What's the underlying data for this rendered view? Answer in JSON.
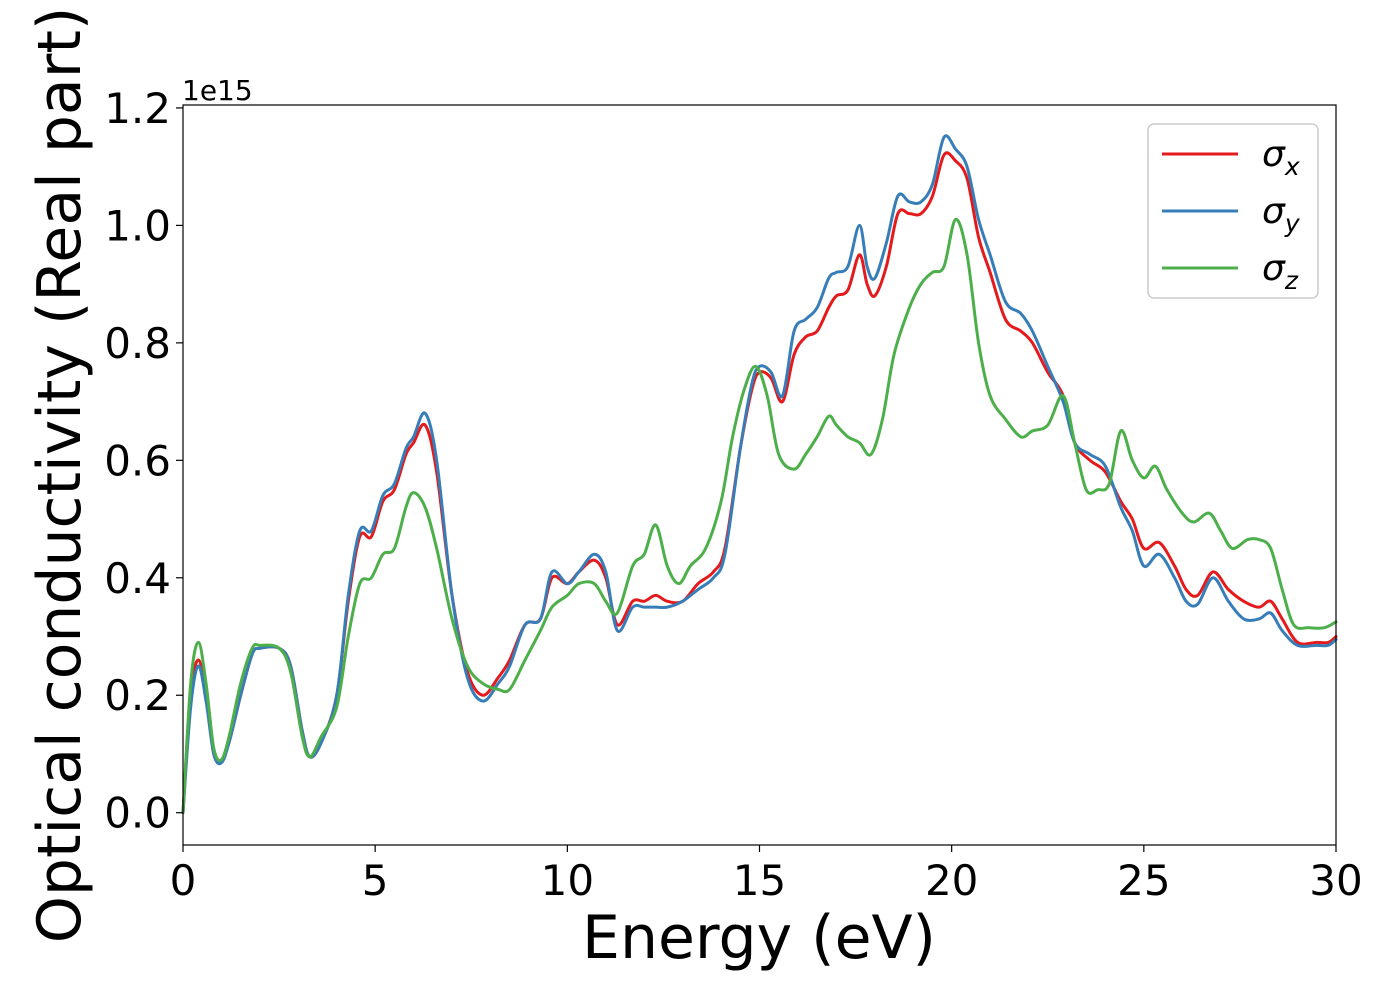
{
  "chart_data": {
    "type": "line",
    "xlabel": "Energy (eV)",
    "ylabel": "Optical conductivity (Real part)",
    "y_offset_label": "1e15",
    "xlim": [
      0,
      30
    ],
    "ylim": [
      -0.055,
      1.205
    ],
    "x_ticks": [
      0,
      5,
      10,
      15,
      20,
      25,
      30
    ],
    "y_ticks": [
      0.0,
      0.2,
      0.4,
      0.6,
      0.8,
      1.0,
      1.2
    ],
    "x_tick_labels": [
      "0",
      "5",
      "10",
      "15",
      "20",
      "25",
      "30"
    ],
    "y_tick_labels": [
      "0.0",
      "0.2",
      "0.4",
      "0.6",
      "0.8",
      "1.0",
      "1.2"
    ],
    "grid": false,
    "legend_position": "top-right",
    "series": [
      {
        "name": "σx",
        "legend_base": "σ",
        "legend_sub": "x",
        "color": "#e41a1c",
        "points": [
          [
            0,
            0.0
          ],
          [
            0.2,
            0.2
          ],
          [
            0.4,
            0.26
          ],
          [
            0.6,
            0.2
          ],
          [
            0.8,
            0.1
          ],
          [
            1.0,
            0.09
          ],
          [
            1.2,
            0.12
          ],
          [
            1.5,
            0.2
          ],
          [
            1.8,
            0.27
          ],
          [
            2.0,
            0.28
          ],
          [
            2.5,
            0.28
          ],
          [
            2.8,
            0.25
          ],
          [
            3.1,
            0.14
          ],
          [
            3.3,
            0.095
          ],
          [
            3.6,
            0.12
          ],
          [
            4.0,
            0.2
          ],
          [
            4.3,
            0.36
          ],
          [
            4.6,
            0.47
          ],
          [
            4.9,
            0.47
          ],
          [
            5.2,
            0.53
          ],
          [
            5.5,
            0.55
          ],
          [
            5.8,
            0.61
          ],
          [
            6.0,
            0.63
          ],
          [
            6.3,
            0.66
          ],
          [
            6.6,
            0.58
          ],
          [
            7.0,
            0.37
          ],
          [
            7.4,
            0.24
          ],
          [
            7.8,
            0.2
          ],
          [
            8.2,
            0.23
          ],
          [
            8.5,
            0.26
          ],
          [
            8.9,
            0.32
          ],
          [
            9.3,
            0.33
          ],
          [
            9.6,
            0.4
          ],
          [
            10.0,
            0.39
          ],
          [
            10.3,
            0.41
          ],
          [
            10.7,
            0.43
          ],
          [
            11.0,
            0.4
          ],
          [
            11.3,
            0.32
          ],
          [
            11.7,
            0.36
          ],
          [
            12.0,
            0.36
          ],
          [
            12.3,
            0.37
          ],
          [
            12.6,
            0.36
          ],
          [
            13.0,
            0.36
          ],
          [
            13.4,
            0.39
          ],
          [
            13.8,
            0.41
          ],
          [
            14.1,
            0.45
          ],
          [
            14.5,
            0.62
          ],
          [
            14.8,
            0.72
          ],
          [
            15.0,
            0.75
          ],
          [
            15.3,
            0.74
          ],
          [
            15.6,
            0.7
          ],
          [
            15.9,
            0.78
          ],
          [
            16.2,
            0.81
          ],
          [
            16.5,
            0.82
          ],
          [
            16.8,
            0.86
          ],
          [
            17.0,
            0.88
          ],
          [
            17.3,
            0.89
          ],
          [
            17.6,
            0.95
          ],
          [
            17.8,
            0.9
          ],
          [
            18.0,
            0.88
          ],
          [
            18.3,
            0.93
          ],
          [
            18.6,
            1.02
          ],
          [
            18.9,
            1.02
          ],
          [
            19.2,
            1.02
          ],
          [
            19.5,
            1.05
          ],
          [
            19.8,
            1.12
          ],
          [
            20.1,
            1.11
          ],
          [
            20.4,
            1.08
          ],
          [
            20.7,
            0.98
          ],
          [
            21.0,
            0.92
          ],
          [
            21.4,
            0.84
          ],
          [
            21.8,
            0.82
          ],
          [
            22.1,
            0.8
          ],
          [
            22.5,
            0.75
          ],
          [
            22.9,
            0.71
          ],
          [
            23.2,
            0.63
          ],
          [
            23.6,
            0.6
          ],
          [
            24.0,
            0.58
          ],
          [
            24.4,
            0.53
          ],
          [
            24.7,
            0.5
          ],
          [
            25.0,
            0.45
          ],
          [
            25.4,
            0.46
          ],
          [
            25.8,
            0.42
          ],
          [
            26.1,
            0.38
          ],
          [
            26.4,
            0.37
          ],
          [
            26.8,
            0.41
          ],
          [
            27.2,
            0.38
          ],
          [
            27.6,
            0.36
          ],
          [
            28.0,
            0.35
          ],
          [
            28.3,
            0.36
          ],
          [
            28.6,
            0.33
          ],
          [
            29.0,
            0.29
          ],
          [
            29.5,
            0.29
          ],
          [
            29.8,
            0.29
          ],
          [
            30.0,
            0.3
          ]
        ]
      },
      {
        "name": "σy",
        "legend_base": "σ",
        "legend_sub": "y",
        "color": "#377eb8",
        "points": [
          [
            0,
            0.0
          ],
          [
            0.2,
            0.18
          ],
          [
            0.4,
            0.25
          ],
          [
            0.6,
            0.19
          ],
          [
            0.8,
            0.1
          ],
          [
            1.0,
            0.085
          ],
          [
            1.2,
            0.12
          ],
          [
            1.5,
            0.2
          ],
          [
            1.8,
            0.27
          ],
          [
            2.0,
            0.28
          ],
          [
            2.5,
            0.28
          ],
          [
            2.8,
            0.25
          ],
          [
            3.1,
            0.14
          ],
          [
            3.3,
            0.095
          ],
          [
            3.6,
            0.12
          ],
          [
            4.0,
            0.2
          ],
          [
            4.3,
            0.37
          ],
          [
            4.6,
            0.48
          ],
          [
            4.9,
            0.48
          ],
          [
            5.2,
            0.54
          ],
          [
            5.5,
            0.56
          ],
          [
            5.8,
            0.62
          ],
          [
            6.0,
            0.64
          ],
          [
            6.3,
            0.68
          ],
          [
            6.6,
            0.6
          ],
          [
            7.0,
            0.37
          ],
          [
            7.4,
            0.23
          ],
          [
            7.8,
            0.19
          ],
          [
            8.2,
            0.22
          ],
          [
            8.5,
            0.25
          ],
          [
            8.9,
            0.32
          ],
          [
            9.3,
            0.33
          ],
          [
            9.6,
            0.41
          ],
          [
            10.0,
            0.39
          ],
          [
            10.3,
            0.41
          ],
          [
            10.7,
            0.44
          ],
          [
            11.0,
            0.41
          ],
          [
            11.3,
            0.31
          ],
          [
            11.7,
            0.35
          ],
          [
            12.0,
            0.35
          ],
          [
            12.3,
            0.35
          ],
          [
            12.6,
            0.35
          ],
          [
            13.0,
            0.36
          ],
          [
            13.4,
            0.38
          ],
          [
            13.8,
            0.4
          ],
          [
            14.1,
            0.44
          ],
          [
            14.5,
            0.62
          ],
          [
            14.8,
            0.73
          ],
          [
            15.0,
            0.76
          ],
          [
            15.3,
            0.75
          ],
          [
            15.6,
            0.71
          ],
          [
            15.9,
            0.82
          ],
          [
            16.2,
            0.84
          ],
          [
            16.5,
            0.86
          ],
          [
            16.8,
            0.91
          ],
          [
            17.0,
            0.92
          ],
          [
            17.3,
            0.93
          ],
          [
            17.6,
            1.0
          ],
          [
            17.8,
            0.93
          ],
          [
            18.0,
            0.91
          ],
          [
            18.3,
            0.97
          ],
          [
            18.6,
            1.05
          ],
          [
            18.9,
            1.04
          ],
          [
            19.2,
            1.04
          ],
          [
            19.5,
            1.07
          ],
          [
            19.8,
            1.15
          ],
          [
            20.1,
            1.13
          ],
          [
            20.4,
            1.1
          ],
          [
            20.7,
            1.01
          ],
          [
            21.0,
            0.95
          ],
          [
            21.4,
            0.87
          ],
          [
            21.8,
            0.85
          ],
          [
            22.1,
            0.82
          ],
          [
            22.5,
            0.76
          ],
          [
            22.9,
            0.7
          ],
          [
            23.2,
            0.63
          ],
          [
            23.6,
            0.61
          ],
          [
            24.0,
            0.59
          ],
          [
            24.4,
            0.52
          ],
          [
            24.7,
            0.48
          ],
          [
            25.0,
            0.42
          ],
          [
            25.4,
            0.44
          ],
          [
            25.8,
            0.4
          ],
          [
            26.1,
            0.36
          ],
          [
            26.4,
            0.355
          ],
          [
            26.8,
            0.4
          ],
          [
            27.2,
            0.36
          ],
          [
            27.6,
            0.33
          ],
          [
            28.0,
            0.33
          ],
          [
            28.3,
            0.34
          ],
          [
            28.6,
            0.31
          ],
          [
            29.0,
            0.285
          ],
          [
            29.5,
            0.285
          ],
          [
            29.8,
            0.285
          ],
          [
            30.0,
            0.295
          ]
        ]
      },
      {
        "name": "σz",
        "legend_base": "σ",
        "legend_sub": "z",
        "color": "#4daf4a",
        "points": [
          [
            0,
            0.0
          ],
          [
            0.2,
            0.22
          ],
          [
            0.4,
            0.29
          ],
          [
            0.6,
            0.22
          ],
          [
            0.8,
            0.11
          ],
          [
            1.0,
            0.09
          ],
          [
            1.2,
            0.13
          ],
          [
            1.5,
            0.22
          ],
          [
            1.8,
            0.28
          ],
          [
            2.0,
            0.285
          ],
          [
            2.5,
            0.28
          ],
          [
            2.8,
            0.24
          ],
          [
            3.1,
            0.13
          ],
          [
            3.3,
            0.095
          ],
          [
            3.6,
            0.13
          ],
          [
            4.0,
            0.18
          ],
          [
            4.3,
            0.3
          ],
          [
            4.6,
            0.39
          ],
          [
            4.9,
            0.4
          ],
          [
            5.2,
            0.44
          ],
          [
            5.5,
            0.45
          ],
          [
            5.8,
            0.52
          ],
          [
            6.0,
            0.545
          ],
          [
            6.3,
            0.52
          ],
          [
            6.6,
            0.45
          ],
          [
            7.0,
            0.33
          ],
          [
            7.4,
            0.25
          ],
          [
            7.8,
            0.22
          ],
          [
            8.2,
            0.21
          ],
          [
            8.5,
            0.21
          ],
          [
            8.9,
            0.26
          ],
          [
            9.3,
            0.31
          ],
          [
            9.6,
            0.35
          ],
          [
            10.0,
            0.37
          ],
          [
            10.3,
            0.39
          ],
          [
            10.7,
            0.39
          ],
          [
            11.0,
            0.36
          ],
          [
            11.3,
            0.34
          ],
          [
            11.7,
            0.42
          ],
          [
            12.0,
            0.44
          ],
          [
            12.3,
            0.49
          ],
          [
            12.6,
            0.42
          ],
          [
            12.9,
            0.39
          ],
          [
            13.2,
            0.42
          ],
          [
            13.6,
            0.45
          ],
          [
            14.0,
            0.53
          ],
          [
            14.3,
            0.64
          ],
          [
            14.6,
            0.72
          ],
          [
            14.9,
            0.76
          ],
          [
            15.2,
            0.71
          ],
          [
            15.5,
            0.61
          ],
          [
            15.9,
            0.585
          ],
          [
            16.2,
            0.61
          ],
          [
            16.5,
            0.64
          ],
          [
            16.8,
            0.675
          ],
          [
            17.0,
            0.66
          ],
          [
            17.3,
            0.64
          ],
          [
            17.6,
            0.63
          ],
          [
            17.9,
            0.61
          ],
          [
            18.2,
            0.67
          ],
          [
            18.5,
            0.78
          ],
          [
            18.9,
            0.86
          ],
          [
            19.2,
            0.9
          ],
          [
            19.5,
            0.92
          ],
          [
            19.8,
            0.93
          ],
          [
            20.1,
            1.01
          ],
          [
            20.4,
            0.95
          ],
          [
            20.7,
            0.8
          ],
          [
            21.0,
            0.71
          ],
          [
            21.4,
            0.67
          ],
          [
            21.8,
            0.64
          ],
          [
            22.1,
            0.65
          ],
          [
            22.5,
            0.66
          ],
          [
            22.9,
            0.71
          ],
          [
            23.2,
            0.63
          ],
          [
            23.5,
            0.55
          ],
          [
            23.8,
            0.55
          ],
          [
            24.1,
            0.56
          ],
          [
            24.4,
            0.65
          ],
          [
            24.7,
            0.6
          ],
          [
            25.0,
            0.57
          ],
          [
            25.3,
            0.59
          ],
          [
            25.6,
            0.55
          ],
          [
            26.0,
            0.51
          ],
          [
            26.3,
            0.495
          ],
          [
            26.7,
            0.51
          ],
          [
            27.0,
            0.48
          ],
          [
            27.3,
            0.45
          ],
          [
            27.7,
            0.465
          ],
          [
            28.0,
            0.465
          ],
          [
            28.3,
            0.45
          ],
          [
            28.6,
            0.38
          ],
          [
            28.9,
            0.32
          ],
          [
            29.3,
            0.315
          ],
          [
            29.7,
            0.315
          ],
          [
            30.0,
            0.325
          ]
        ]
      }
    ]
  }
}
